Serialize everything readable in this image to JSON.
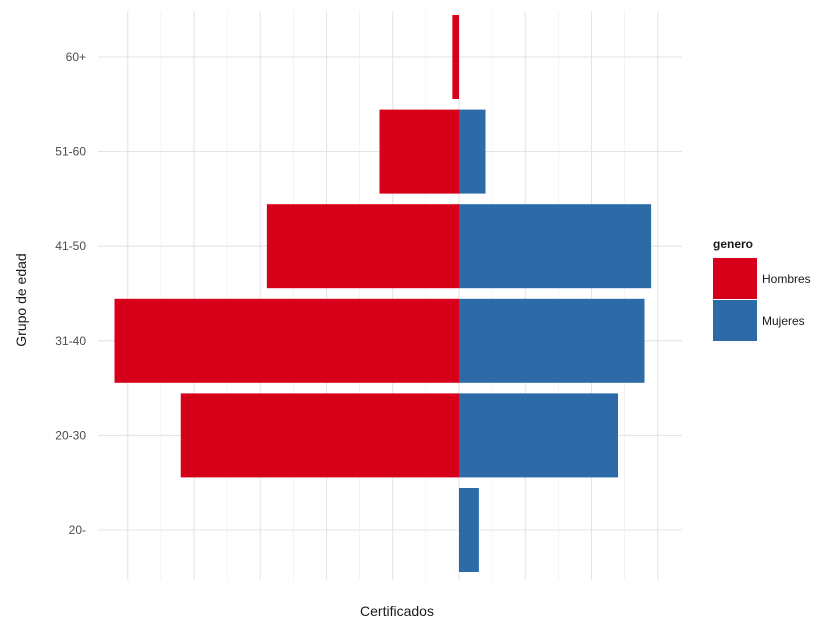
{
  "chart_data": {
    "type": "bar",
    "orientation": "horizontal",
    "layout": "population-pyramid",
    "categories": [
      "20-",
      "20-30",
      "31-40",
      "41-50",
      "51-60",
      "60+"
    ],
    "series": [
      {
        "name": "Hombres",
        "values": [
          0,
          -4.2,
          -5.2,
          -2.9,
          -1.2,
          -0.1
        ],
        "color": "#d7001a"
      },
      {
        "name": "Mujeres",
        "values": [
          0.3,
          2.4,
          2.8,
          2.9,
          0.4,
          0
        ],
        "color": "#2c6aa8"
      }
    ],
    "xlabel": "Certificados",
    "ylabel": "Grupo de edad",
    "xlim": [
      -5.5,
      3.3
    ],
    "x_tick_labels_shown": false,
    "grid": true,
    "legend": {
      "title": "genero",
      "position": "right"
    }
  }
}
